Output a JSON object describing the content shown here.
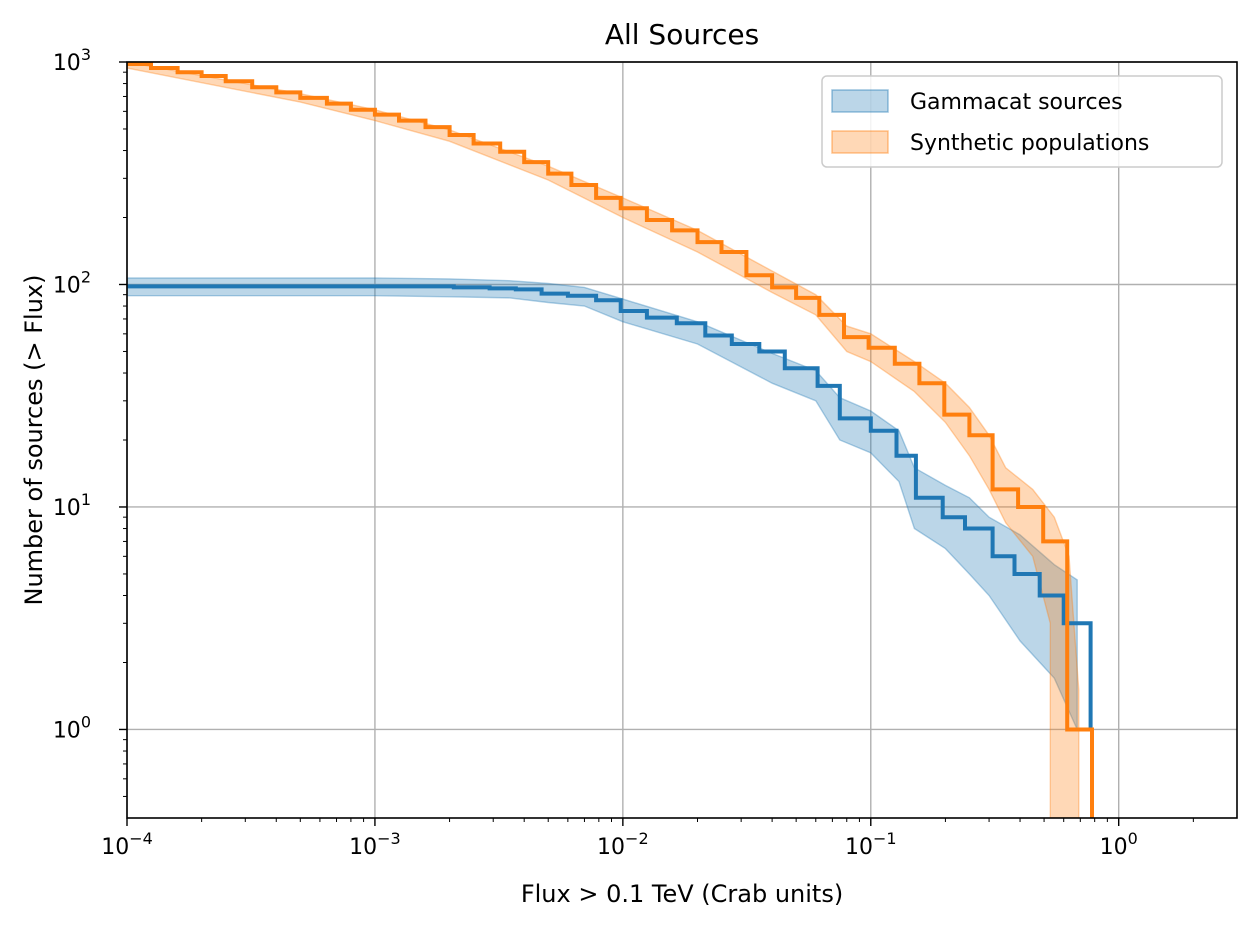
{
  "chart_data": {
    "type": "line",
    "title": "All Sources",
    "xlabel": "Flux > 0.1 TeV (Crab units)",
    "ylabel": "Number of sources (> Flux)",
    "xscale": "log",
    "yscale": "log",
    "xlim": [
      0.0001,
      3
    ],
    "ylim": [
      0.4,
      1000
    ],
    "grid": true,
    "legend": "top-right",
    "x_ticks": [
      {
        "value": 0.0001,
        "base": "10",
        "exp": "−4"
      },
      {
        "value": 0.001,
        "base": "10",
        "exp": "−3"
      },
      {
        "value": 0.01,
        "base": "10",
        "exp": "−2"
      },
      {
        "value": 0.1,
        "base": "10",
        "exp": "−1"
      },
      {
        "value": 1,
        "base": "10",
        "exp": "0"
      }
    ],
    "y_ticks": [
      {
        "value": 1,
        "base": "10",
        "exp": "0"
      },
      {
        "value": 10,
        "base": "10",
        "exp": "1"
      },
      {
        "value": 100,
        "base": "10",
        "exp": "2"
      },
      {
        "value": 1000,
        "base": "10",
        "exp": "3"
      }
    ],
    "series": [
      {
        "name": "Gammacat sources",
        "color": "#1f77b4",
        "band_color": "#1f77b4",
        "steps": [
          [
            0.0001,
            98
          ],
          [
            0.00118,
            98
          ],
          [
            0.00208,
            97
          ],
          [
            0.0029,
            96
          ],
          [
            0.0037,
            95
          ],
          [
            0.0047,
            91
          ],
          [
            0.006,
            89
          ],
          [
            0.0078,
            85
          ],
          [
            0.0098,
            76
          ],
          [
            0.0125,
            71
          ],
          [
            0.0165,
            67
          ],
          [
            0.0215,
            59
          ],
          [
            0.0275,
            54
          ],
          [
            0.0355,
            50
          ],
          [
            0.045,
            42
          ],
          [
            0.052,
            42
          ],
          [
            0.061,
            35
          ],
          [
            0.075,
            25
          ],
          [
            0.1,
            22
          ],
          [
            0.127,
            17
          ],
          [
            0.152,
            11
          ],
          [
            0.195,
            9
          ],
          [
            0.24,
            8
          ],
          [
            0.31,
            6
          ],
          [
            0.38,
            5
          ],
          [
            0.48,
            4
          ],
          [
            0.6,
            3
          ],
          [
            0.77,
            1
          ]
        ],
        "end": 0.78,
        "band_upper": [
          [
            0.0001,
            107
          ],
          [
            0.001,
            107
          ],
          [
            0.002,
            106
          ],
          [
            0.0035,
            104
          ],
          [
            0.005,
            101
          ],
          [
            0.007,
            97
          ],
          [
            0.01,
            86
          ],
          [
            0.02,
            68
          ],
          [
            0.04,
            49
          ],
          [
            0.06,
            41
          ],
          [
            0.075,
            31
          ],
          [
            0.1,
            27
          ],
          [
            0.13,
            22
          ],
          [
            0.15,
            15
          ],
          [
            0.2,
            12.5
          ],
          [
            0.25,
            11
          ],
          [
            0.3,
            9
          ],
          [
            0.4,
            7.5
          ],
          [
            0.55,
            5.5
          ],
          [
            0.68,
            4.7
          ],
          [
            0.68,
            1
          ]
        ],
        "band_lower": [
          [
            0.0001,
            89
          ],
          [
            0.001,
            89
          ],
          [
            0.002,
            88
          ],
          [
            0.0035,
            87
          ],
          [
            0.005,
            83
          ],
          [
            0.007,
            80
          ],
          [
            0.01,
            68
          ],
          [
            0.02,
            54
          ],
          [
            0.04,
            36
          ],
          [
            0.06,
            30
          ],
          [
            0.075,
            20
          ],
          [
            0.1,
            17.5
          ],
          [
            0.13,
            13
          ],
          [
            0.15,
            8
          ],
          [
            0.2,
            6.5
          ],
          [
            0.25,
            5
          ],
          [
            0.3,
            4
          ],
          [
            0.4,
            2.5
          ],
          [
            0.55,
            1.7
          ],
          [
            0.68,
            1
          ]
        ]
      },
      {
        "name": "Synthetic populations",
        "color": "#ff7f0e",
        "band_color": "#ff7f0e",
        "steps": [
          [
            0.0001,
            980
          ],
          [
            0.000125,
            940
          ],
          [
            0.00016,
            900
          ],
          [
            0.0002,
            865
          ],
          [
            0.00025,
            820
          ],
          [
            0.00032,
            770
          ],
          [
            0.0004,
            730
          ],
          [
            0.0005,
            690
          ],
          [
            0.00064,
            650
          ],
          [
            0.0008,
            610
          ],
          [
            0.001,
            580
          ],
          [
            0.00125,
            545
          ],
          [
            0.0016,
            510
          ],
          [
            0.002,
            470
          ],
          [
            0.0025,
            430
          ],
          [
            0.0032,
            395
          ],
          [
            0.004,
            355
          ],
          [
            0.005,
            315
          ],
          [
            0.0062,
            280
          ],
          [
            0.0078,
            245
          ],
          [
            0.0098,
            220
          ],
          [
            0.0125,
            195
          ],
          [
            0.0158,
            175
          ],
          [
            0.02,
            155
          ],
          [
            0.025,
            140
          ],
          [
            0.0315,
            110
          ],
          [
            0.04,
            97
          ],
          [
            0.05,
            87
          ],
          [
            0.062,
            73
          ],
          [
            0.078,
            58
          ],
          [
            0.098,
            52
          ],
          [
            0.125,
            44
          ],
          [
            0.157,
            36
          ],
          [
            0.198,
            26
          ],
          [
            0.25,
            21
          ],
          [
            0.31,
            12
          ],
          [
            0.393,
            10
          ],
          [
            0.496,
            7
          ],
          [
            0.62,
            1
          ]
        ],
        "end": 0.78,
        "band_upper": [
          [
            0.0001,
            1000
          ],
          [
            0.0005,
            720
          ],
          [
            0.001,
            610
          ],
          [
            0.002,
            495
          ],
          [
            0.005,
            340
          ],
          [
            0.01,
            245
          ],
          [
            0.02,
            175
          ],
          [
            0.04,
            115
          ],
          [
            0.06,
            90
          ],
          [
            0.08,
            65
          ],
          [
            0.1,
            60
          ],
          [
            0.15,
            45
          ],
          [
            0.2,
            36
          ],
          [
            0.25,
            28
          ],
          [
            0.3,
            21
          ],
          [
            0.35,
            15
          ],
          [
            0.45,
            12
          ],
          [
            0.55,
            9
          ],
          [
            0.63,
            6
          ],
          [
            0.69,
            1.5
          ],
          [
            0.69,
            0.4
          ]
        ],
        "band_lower": [
          [
            0.0001,
            940
          ],
          [
            0.0005,
            660
          ],
          [
            0.001,
            545
          ],
          [
            0.002,
            440
          ],
          [
            0.005,
            295
          ],
          [
            0.01,
            200
          ],
          [
            0.02,
            140
          ],
          [
            0.04,
            92
          ],
          [
            0.06,
            73
          ],
          [
            0.08,
            50
          ],
          [
            0.1,
            45
          ],
          [
            0.15,
            33
          ],
          [
            0.2,
            24
          ],
          [
            0.25,
            17
          ],
          [
            0.3,
            12
          ],
          [
            0.35,
            8.5
          ],
          [
            0.45,
            6
          ],
          [
            0.53,
            3
          ],
          [
            0.53,
            0.4
          ]
        ]
      }
    ]
  }
}
